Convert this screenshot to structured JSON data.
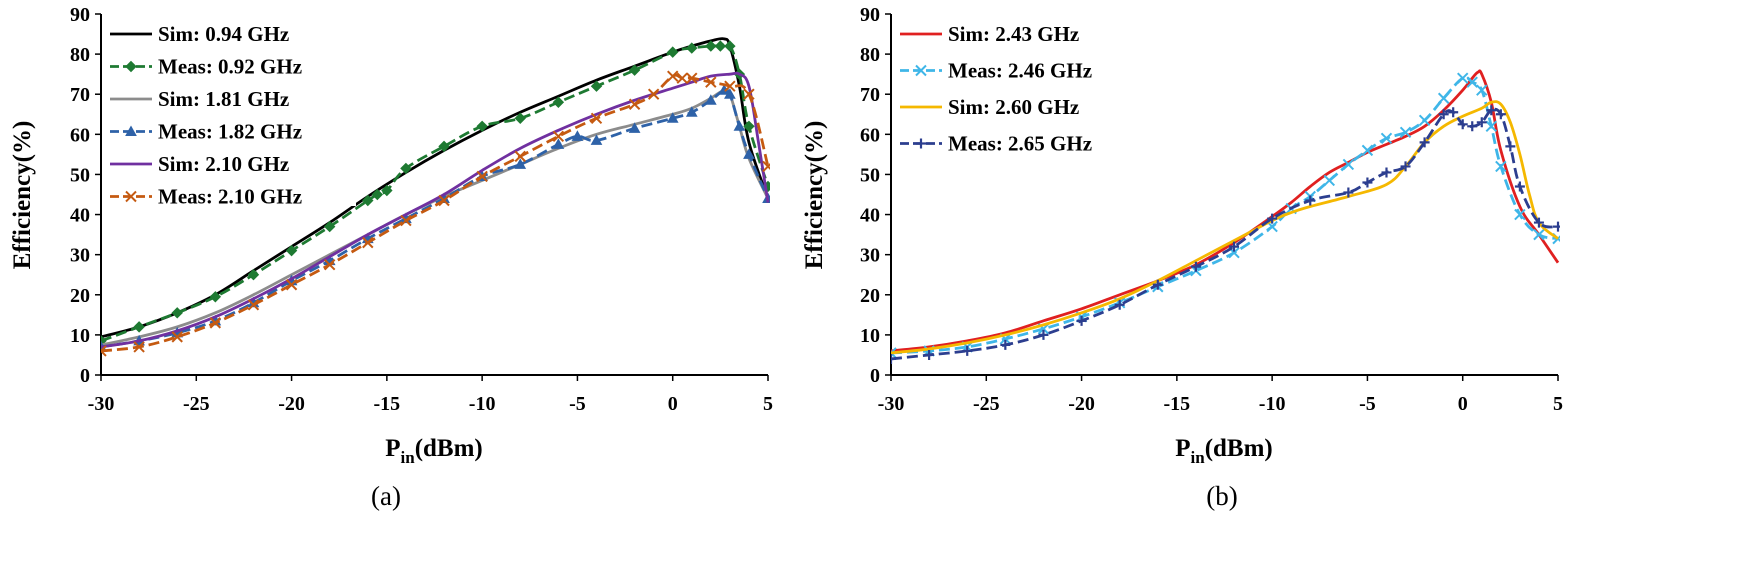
{
  "chart_data": [
    {
      "type": "line",
      "panel_label": "(a)",
      "xlabel_main": "P",
      "xlabel_sub": "in",
      "xlabel_rest": "(dBm)",
      "ylabel": "Efficiency(%)",
      "xlim": [
        -30,
        5
      ],
      "ylim": [
        0,
        90
      ],
      "xticks": [
        -30,
        -25,
        -20,
        -15,
        -10,
        -5,
        0,
        5
      ],
      "yticks": [
        0,
        10,
        20,
        30,
        40,
        50,
        60,
        70,
        80,
        90
      ],
      "legend_position": "top-left",
      "series": [
        {
          "name": "Sim: 0.94 GHz",
          "color": "#000000",
          "style": "solid",
          "marker": "none",
          "x": [
            -30,
            -28,
            -26,
            -24,
            -22,
            -20,
            -18,
            -16,
            -14,
            -12,
            -10,
            -8,
            -6,
            -4,
            -2,
            0,
            1,
            2,
            2.7,
            3,
            3.5,
            4,
            5
          ],
          "y": [
            9.5,
            12,
            15.5,
            20,
            26,
            32,
            38,
            44.5,
            50.5,
            56,
            61,
            65.5,
            69.5,
            73.5,
            77,
            80.5,
            82,
            83.3,
            83.8,
            82,
            72,
            58,
            44
          ]
        },
        {
          "name": "Meas: 0.92 GHz",
          "color": "#1e7a32",
          "style": "dash",
          "marker": "diamond",
          "x": [
            -30,
            -28,
            -26,
            -24,
            -22,
            -20,
            -18,
            -16,
            -15.5,
            -15,
            -14,
            -12,
            -10,
            -8,
            -6,
            -4,
            -2,
            0,
            1,
            2,
            2.5,
            3,
            3.5,
            4,
            5
          ],
          "y": [
            8.5,
            12,
            15.5,
            19.5,
            25,
            31,
            37,
            43.5,
            45,
            46,
            51.5,
            57,
            62,
            64,
            68,
            72,
            76,
            80.5,
            81.5,
            82,
            82,
            82,
            75,
            62,
            47
          ]
        },
        {
          "name": "Sim: 1.81 GHz",
          "color": "#8c8c8c",
          "style": "solid",
          "marker": "none",
          "x": [
            -30,
            -28,
            -26,
            -24,
            -22,
            -20,
            -18,
            -16,
            -14,
            -12,
            -10,
            -8,
            -6,
            -4,
            -2,
            0,
            1,
            2,
            2.7,
            3,
            3.5,
            4,
            5
          ],
          "y": [
            7.5,
            9.5,
            12,
            15.5,
            20,
            25,
            30,
            35,
            40,
            44.5,
            48.5,
            52.5,
            56.5,
            60,
            62.5,
            65,
            66.5,
            69,
            71,
            70,
            62,
            54,
            44
          ]
        },
        {
          "name": "Meas: 1.82 GHz",
          "color": "#2e62a8",
          "style": "dash",
          "marker": "triangle",
          "x": [
            -30,
            -28,
            -26,
            -24,
            -22,
            -20,
            -18,
            -16,
            -14,
            -12,
            -10,
            -8,
            -6,
            -5,
            -4,
            -2,
            0,
            1,
            2,
            2.7,
            3,
            3.5,
            4,
            5
          ],
          "y": [
            7,
            8.5,
            10.5,
            13.5,
            18,
            23.5,
            28.5,
            34,
            39,
            44,
            49.5,
            52.5,
            57.5,
            59.5,
            58.5,
            61.5,
            64,
            65.5,
            68.5,
            71,
            70,
            62,
            55,
            44
          ]
        },
        {
          "name": "Sim: 2.10 GHz",
          "color": "#7030a0",
          "style": "solid",
          "marker": "none",
          "x": [
            -30,
            -28,
            -26,
            -24,
            -22,
            -20,
            -18,
            -16,
            -14,
            -12,
            -10,
            -8,
            -6,
            -4,
            -2,
            0,
            1,
            2,
            3,
            3.5,
            4,
            4.5,
            5
          ],
          "y": [
            7,
            8.5,
            11,
            14.5,
            19,
            24,
            29.5,
            35,
            40,
            45,
            51,
            56.5,
            61,
            65,
            68.5,
            71.5,
            73,
            74.5,
            75,
            75,
            72,
            58,
            43
          ]
        },
        {
          "name": "Meas: 2.10 GHz",
          "color": "#c55a11",
          "style": "dash",
          "marker": "x",
          "x": [
            -30,
            -28,
            -26,
            -24,
            -22,
            -20,
            -18,
            -16,
            -14,
            -12,
            -10,
            -8,
            -6,
            -4,
            -2,
            -1,
            0,
            0.5,
            1,
            2,
            3,
            4,
            5
          ],
          "y": [
            6,
            7,
            9.5,
            13,
            17.5,
            22.5,
            27.5,
            33,
            38.5,
            43.5,
            49.5,
            54.5,
            59.5,
            64,
            67.5,
            70,
            74.5,
            74,
            74,
            73,
            72,
            70,
            52
          ]
        }
      ]
    },
    {
      "type": "line",
      "panel_label": "(b)",
      "xlabel_main": "P",
      "xlabel_sub": "in",
      "xlabel_rest": "(dBm)",
      "ylabel": "Efficiency(%)",
      "xlim": [
        -30,
        5
      ],
      "ylim": [
        0,
        90
      ],
      "xticks": [
        -30,
        -25,
        -20,
        -15,
        -10,
        -5,
        0,
        5
      ],
      "yticks": [
        0,
        10,
        20,
        30,
        40,
        50,
        60,
        70,
        80,
        90
      ],
      "legend_position": "top-left",
      "series": [
        {
          "name": "Sim: 2.43 GHz",
          "color": "#e02020",
          "style": "solid",
          "marker": "none",
          "x": [
            -30,
            -28,
            -26,
            -24,
            -22,
            -20,
            -18,
            -16,
            -14,
            -12,
            -10,
            -9,
            -8,
            -7,
            -6,
            -5,
            -4,
            -3,
            -2,
            -1,
            0,
            0.5,
            0.8,
            1,
            1.5,
            2,
            3,
            4,
            5
          ],
          "y": [
            6,
            7,
            8.5,
            10.5,
            13.5,
            16.5,
            20,
            23.5,
            27.5,
            33,
            39.5,
            43,
            47,
            50.5,
            53,
            55.5,
            57.5,
            59.5,
            62,
            66,
            71,
            74,
            75.5,
            75,
            68,
            56,
            42,
            35,
            28
          ]
        },
        {
          "name": "Meas: 2.46 GHz",
          "color": "#3fb6e8",
          "style": "dash",
          "marker": "x",
          "x": [
            -30,
            -28,
            -26,
            -24,
            -22,
            -20,
            -18,
            -16,
            -14,
            -12,
            -10,
            -9,
            -8,
            -7,
            -6,
            -5,
            -4,
            -3,
            -2,
            -1,
            0,
            0.5,
            1,
            1.5,
            2,
            3,
            4,
            5
          ],
          "y": [
            5.5,
            6,
            7,
            9,
            11.5,
            14.5,
            18,
            22,
            26,
            30.5,
            37,
            41.5,
            44.5,
            48.5,
            52.5,
            56,
            59,
            60.5,
            63.5,
            69,
            74,
            73,
            71,
            62,
            52,
            40,
            35,
            34
          ]
        },
        {
          "name": "Sim: 2.60 GHz",
          "color": "#f5b800",
          "style": "solid",
          "marker": "none",
          "x": [
            -30,
            -28,
            -26,
            -24,
            -22,
            -20,
            -18,
            -16,
            -14,
            -12,
            -10,
            -9,
            -8,
            -6,
            -4,
            -3,
            -2,
            -1,
            0,
            1,
            1.5,
            2,
            2.5,
            3,
            3.5,
            4,
            5
          ],
          "y": [
            5.5,
            6.5,
            8,
            10,
            12.5,
            15.5,
            19,
            23.5,
            28.5,
            33.5,
            38.5,
            40.5,
            42,
            44.5,
            47.5,
            52,
            58,
            62,
            64.5,
            66.5,
            68,
            67.5,
            63,
            55,
            45,
            38,
            34
          ]
        },
        {
          "name": "Meas: 2.65 GHz",
          "color": "#2c3e8f",
          "style": "dash",
          "marker": "plus",
          "x": [
            -30,
            -28,
            -26,
            -24,
            -22,
            -20,
            -18,
            -16,
            -14,
            -12,
            -10,
            -8,
            -6,
            -5,
            -4,
            -3,
            -2,
            -1,
            -0.5,
            0,
            0.5,
            1,
            1.5,
            2,
            2.5,
            3,
            4,
            5
          ],
          "y": [
            4,
            5,
            6,
            7.5,
            10,
            13.5,
            17.5,
            22.5,
            27,
            32,
            39,
            43.5,
            45.5,
            48,
            50.5,
            52,
            58,
            65,
            65.5,
            62.5,
            62,
            63,
            66,
            65,
            57,
            47,
            38,
            37
          ]
        }
      ]
    }
  ]
}
